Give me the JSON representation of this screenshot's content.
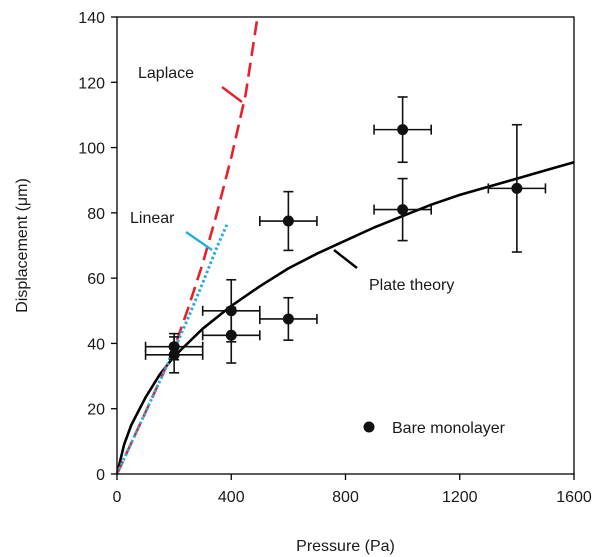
{
  "chart_data": {
    "type": "scatter",
    "title": "",
    "xlabel": "Pressure (Pa)",
    "ylabel": "Displacement (μm)",
    "xlim": [
      0,
      1600
    ],
    "ylim": [
      0,
      140
    ],
    "xticks": [
      0,
      400,
      800,
      1200,
      1600
    ],
    "yticks": [
      0,
      20,
      40,
      60,
      80,
      100,
      120,
      140
    ],
    "xtick_labels": [
      "0",
      "400",
      "800",
      "1200",
      "1600"
    ],
    "ytick_labels": [
      "0",
      "20",
      "40",
      "60",
      "80",
      "100",
      "120",
      "140"
    ],
    "grid": false,
    "legend": {
      "position": "bottom-right",
      "entries": [
        "Bare monolayer"
      ]
    },
    "series": [
      {
        "name": "Bare monolayer",
        "kind": "points-with-errorbars",
        "color": "#111111",
        "points": [
          {
            "x": 200,
            "y": 39,
            "xerr": 100,
            "yerr": 4
          },
          {
            "x": 200,
            "y": 36.5,
            "xerr": 100,
            "yerr": 5.5
          },
          {
            "x": 400,
            "y": 50,
            "xerr": 100,
            "yerr": 9.5
          },
          {
            "x": 400,
            "y": 42.5,
            "xerr": 100,
            "yerr": 8.5
          },
          {
            "x": 600,
            "y": 77.5,
            "xerr": 100,
            "yerr": 9
          },
          {
            "x": 600,
            "y": 47.5,
            "xerr": 100,
            "yerr": 6.5
          },
          {
            "x": 1000,
            "y": 105.5,
            "xerr": 100,
            "yerr": 10
          },
          {
            "x": 1000,
            "y": 81,
            "xerr": 100,
            "yerr": 9.5
          },
          {
            "x": 1400,
            "y": 87.5,
            "xerr": 100,
            "yerr": 19.5
          }
        ]
      },
      {
        "name": "Plate theory",
        "kind": "line",
        "style": "solid",
        "color": "#000000",
        "x": [
          0,
          25,
          50,
          100,
          150,
          200,
          300,
          400,
          500,
          600,
          700,
          800,
          900,
          1000,
          1100,
          1200,
          1300,
          1400,
          1500,
          1600
        ],
        "y": [
          0,
          9,
          15,
          23.5,
          30.5,
          36,
          44.5,
          51.5,
          57.5,
          63,
          67.5,
          71.5,
          75.5,
          79,
          82.5,
          85.5,
          88,
          90.5,
          93,
          95.5
        ]
      },
      {
        "name": "Laplace",
        "kind": "line",
        "style": "dashed",
        "color": "#e8202a",
        "x": [
          0,
          50,
          100,
          150,
          200,
          250,
          300,
          350,
          400,
          450,
          490
        ],
        "y": [
          0,
          9.5,
          19,
          28.5,
          38.5,
          51,
          64.5,
          80,
          97,
          116,
          139
        ]
      },
      {
        "name": "Linear",
        "kind": "line",
        "style": "dotted",
        "color": "#29abe2",
        "x": [
          0,
          50,
          100,
          150,
          200,
          250,
          300,
          350,
          385
        ],
        "y": [
          0,
          9.5,
          19,
          28.5,
          38,
          48,
          58.5,
          69.5,
          76.5
        ]
      }
    ],
    "annotations": [
      {
        "text": "Laplace",
        "series": "Laplace"
      },
      {
        "text": "Linear",
        "series": "Linear"
      },
      {
        "text": "Plate theory",
        "series": "Plate theory"
      }
    ]
  }
}
